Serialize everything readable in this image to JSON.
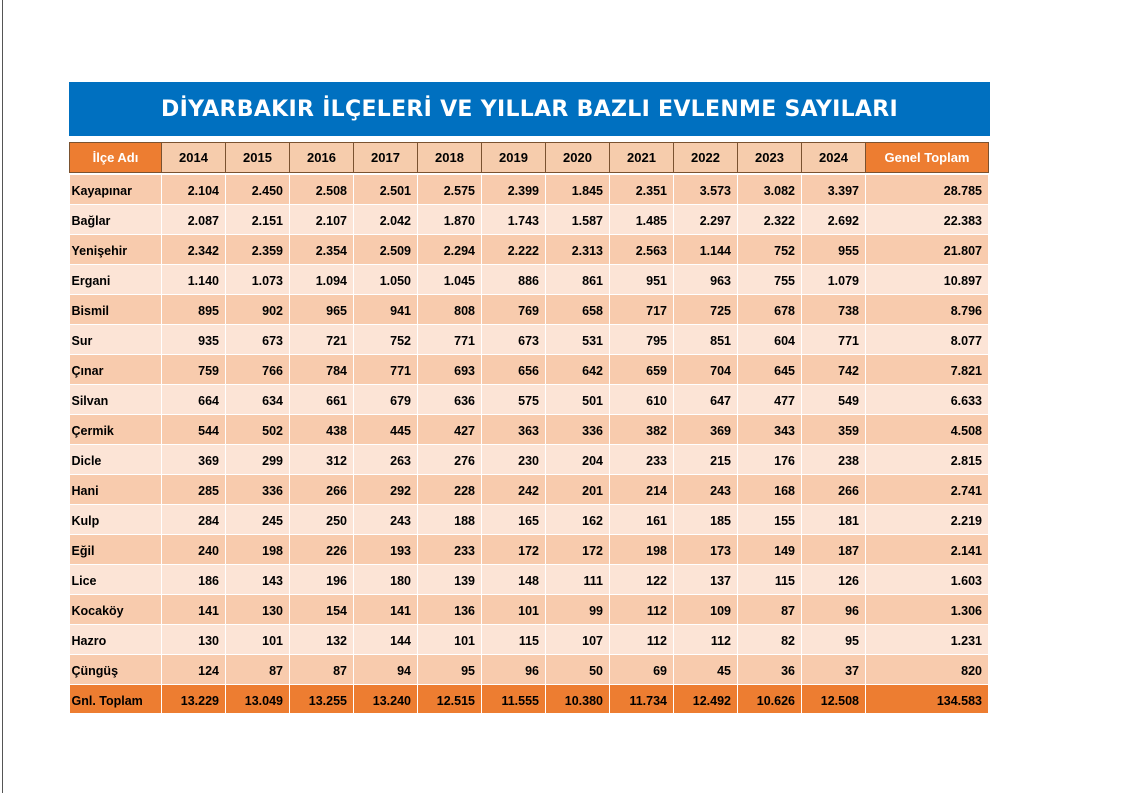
{
  "title": "DİYARBAKIR İLÇELERİ VE YILLAR BAZLI EVLENME SAYILARI",
  "colors": {
    "banner": "#0070c0",
    "accent": "#ed7d31",
    "row_dark": "#f8cbad",
    "row_light": "#fce4d6",
    "header_year": "#f6ccac"
  },
  "header": {
    "name_label": "İlçe Adı",
    "years": [
      "2014",
      "2015",
      "2016",
      "2017",
      "2018",
      "2019",
      "2020",
      "2021",
      "2022",
      "2023",
      "2024"
    ],
    "total_label": "Genel Toplam"
  },
  "rows": [
    {
      "name": "Kayapınar",
      "values": [
        "2.104",
        "2.450",
        "2.508",
        "2.501",
        "2.575",
        "2.399",
        "1.845",
        "2.351",
        "3.573",
        "3.082",
        "3.397"
      ],
      "total": "28.785"
    },
    {
      "name": "Bağlar",
      "values": [
        "2.087",
        "2.151",
        "2.107",
        "2.042",
        "1.870",
        "1.743",
        "1.587",
        "1.485",
        "2.297",
        "2.322",
        "2.692"
      ],
      "total": "22.383"
    },
    {
      "name": "Yenişehir",
      "values": [
        "2.342",
        "2.359",
        "2.354",
        "2.509",
        "2.294",
        "2.222",
        "2.313",
        "2.563",
        "1.144",
        "752",
        "955"
      ],
      "total": "21.807"
    },
    {
      "name": "Ergani",
      "values": [
        "1.140",
        "1.073",
        "1.094",
        "1.050",
        "1.045",
        "886",
        "861",
        "951",
        "963",
        "755",
        "1.079"
      ],
      "total": "10.897"
    },
    {
      "name": "Bismil",
      "values": [
        "895",
        "902",
        "965",
        "941",
        "808",
        "769",
        "658",
        "717",
        "725",
        "678",
        "738"
      ],
      "total": "8.796"
    },
    {
      "name": "Sur",
      "values": [
        "935",
        "673",
        "721",
        "752",
        "771",
        "673",
        "531",
        "795",
        "851",
        "604",
        "771"
      ],
      "total": "8.077"
    },
    {
      "name": "Çınar",
      "values": [
        "759",
        "766",
        "784",
        "771",
        "693",
        "656",
        "642",
        "659",
        "704",
        "645",
        "742"
      ],
      "total": "7.821"
    },
    {
      "name": "Silvan",
      "values": [
        "664",
        "634",
        "661",
        "679",
        "636",
        "575",
        "501",
        "610",
        "647",
        "477",
        "549"
      ],
      "total": "6.633"
    },
    {
      "name": "Çermik",
      "values": [
        "544",
        "502",
        "438",
        "445",
        "427",
        "363",
        "336",
        "382",
        "369",
        "343",
        "359"
      ],
      "total": "4.508"
    },
    {
      "name": "Dicle",
      "values": [
        "369",
        "299",
        "312",
        "263",
        "276",
        "230",
        "204",
        "233",
        "215",
        "176",
        "238"
      ],
      "total": "2.815"
    },
    {
      "name": "Hani",
      "values": [
        "285",
        "336",
        "266",
        "292",
        "228",
        "242",
        "201",
        "214",
        "243",
        "168",
        "266"
      ],
      "total": "2.741"
    },
    {
      "name": "Kulp",
      "values": [
        "284",
        "245",
        "250",
        "243",
        "188",
        "165",
        "162",
        "161",
        "185",
        "155",
        "181"
      ],
      "total": "2.219"
    },
    {
      "name": "Eğil",
      "values": [
        "240",
        "198",
        "226",
        "193",
        "233",
        "172",
        "172",
        "198",
        "173",
        "149",
        "187"
      ],
      "total": "2.141"
    },
    {
      "name": "Lice",
      "values": [
        "186",
        "143",
        "196",
        "180",
        "139",
        "148",
        "111",
        "122",
        "137",
        "115",
        "126"
      ],
      "total": "1.603"
    },
    {
      "name": "Kocaköy",
      "values": [
        "141",
        "130",
        "154",
        "141",
        "136",
        "101",
        "99",
        "112",
        "109",
        "87",
        "96"
      ],
      "total": "1.306"
    },
    {
      "name": "Hazro",
      "values": [
        "130",
        "101",
        "132",
        "144",
        "101",
        "115",
        "107",
        "112",
        "112",
        "82",
        "95"
      ],
      "total": "1.231"
    },
    {
      "name": "Çüngüş",
      "values": [
        "124",
        "87",
        "87",
        "94",
        "95",
        "96",
        "50",
        "69",
        "45",
        "36",
        "37"
      ],
      "total": "820"
    }
  ],
  "grand_total": {
    "name": "Gnl. Toplam",
    "values": [
      "13.229",
      "13.049",
      "13.255",
      "13.240",
      "12.515",
      "11.555",
      "10.380",
      "11.734",
      "12.492",
      "10.626",
      "12.508"
    ],
    "total": "134.583"
  }
}
